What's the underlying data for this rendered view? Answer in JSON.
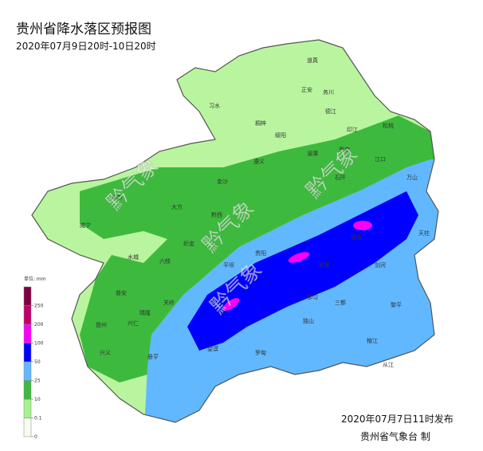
{
  "header": {
    "title": "贵州省降水落区预报图",
    "subtitle": "2020年07月9日20时-10日20时"
  },
  "watermark": "黔气象",
  "legend": {
    "unit": "单位: mm",
    "ticks": [
      0,
      0.1,
      10,
      25,
      50,
      100,
      200,
      250
    ],
    "colors": [
      "#f7fbf0",
      "#a6f28f",
      "#3dba3d",
      "#61b8ff",
      "#0000fe",
      "#fa00fa",
      "#c0006a",
      "#800040"
    ]
  },
  "map": {
    "counties": [
      "道真",
      "正安",
      "务川",
      "习水",
      "桐梓",
      "绥阳",
      "德江",
      "印江",
      "松桃",
      "遵义",
      "湄潭",
      "思南",
      "江口",
      "金沙",
      "大方",
      "黔西",
      "石阡",
      "万山",
      "威宁",
      "毕节",
      "织金",
      "贵阳",
      "镇远",
      "天柱",
      "水城",
      "六枝",
      "平坝",
      "凯里",
      "剑河",
      "普安",
      "晴隆",
      "关岭",
      "都匀",
      "三都",
      "黎平",
      "盘州",
      "兴仁",
      "独山",
      "罗甸",
      "榕江",
      "兴义",
      "册亨",
      "望谟",
      "从江"
    ]
  },
  "footer": {
    "issued": "2020年07月7日11时发布",
    "agency": "贵州省气象台 制"
  }
}
